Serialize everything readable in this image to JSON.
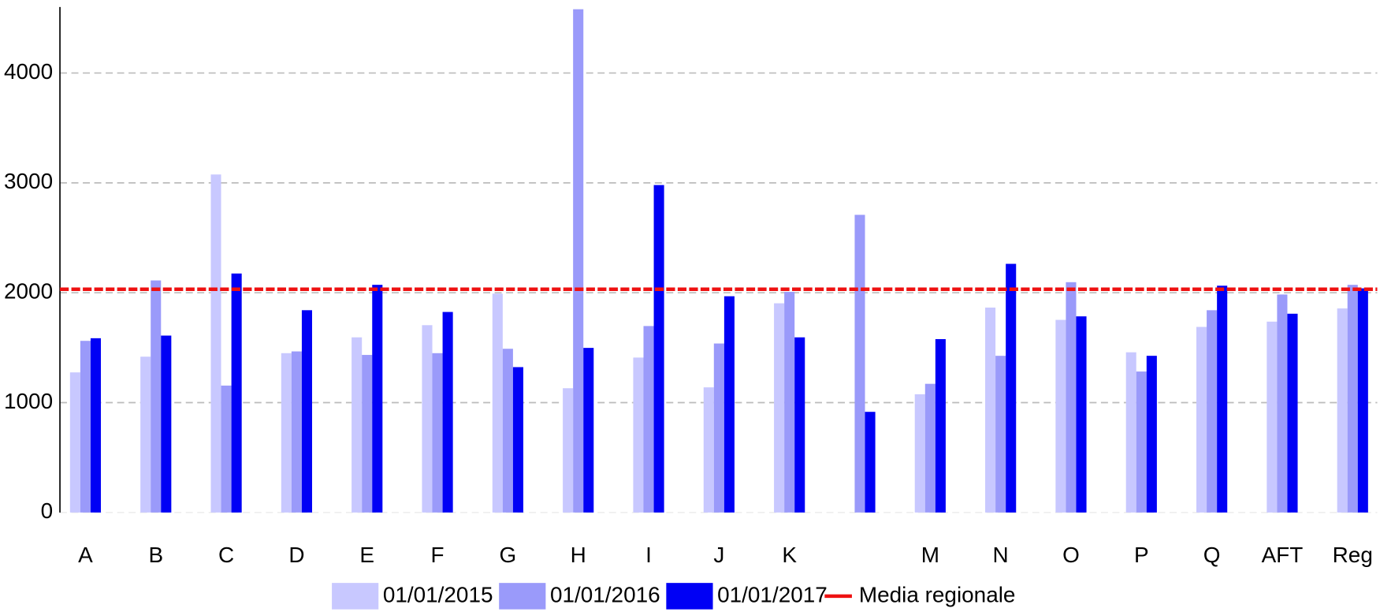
{
  "chart_data": {
    "type": "bar",
    "categories": [
      "A",
      "B",
      "C",
      "D",
      "E",
      "F",
      "G",
      "H",
      "I",
      "J",
      "K",
      null,
      "M",
      "N",
      "O",
      "P",
      "Q",
      "AFT",
      "Reg"
    ],
    "series": [
      {
        "name": "01/01/2015",
        "color": "#c8c8ff",
        "values": [
          1275,
          1418,
          3076,
          1450,
          1594,
          1705,
          1992,
          1131,
          1410,
          1139,
          1904,
          null,
          1076,
          1865,
          1753,
          1458,
          1689,
          1737,
          1857
        ]
      },
      {
        "name": "01/01/2016",
        "color": "#9a9afa",
        "values": [
          1562,
          2112,
          1155,
          1466,
          1434,
          1450,
          1490,
          4580,
          1697,
          1538,
          2008,
          2709,
          1171,
          1426,
          2096,
          1283,
          1841,
          1984,
          2072
        ]
      },
      {
        "name": "01/01/2017",
        "color": "#0000f5",
        "values": [
          1586,
          1610,
          2175,
          1841,
          2072,
          1825,
          1323,
          1498,
          2980,
          1968,
          1594,
          916,
          1578,
          2263,
          1785,
          1426,
          2064,
          1809,
          2040
        ]
      }
    ],
    "reference_line": {
      "name": "Media regionale",
      "color": "#ee1111",
      "value": 2032
    },
    "ylim": [
      0,
      4600
    ],
    "yticks": [
      0,
      1000,
      2000,
      3000,
      4000
    ],
    "grid": true
  }
}
